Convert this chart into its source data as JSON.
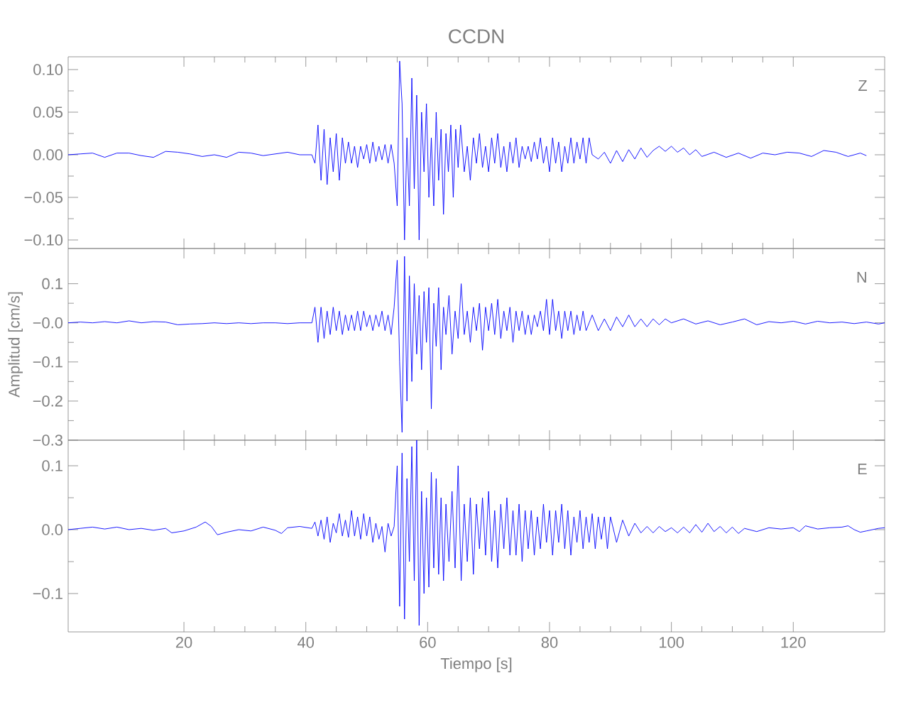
{
  "chart_data": [
    {
      "type": "line",
      "title": "CCDN",
      "annotations": [
        "Z"
      ],
      "tick_labels": "y",
      "xlim": [
        1,
        135
      ],
      "xticks": [
        20,
        40,
        60,
        80,
        100,
        120
      ],
      "ylim": [
        -0.11,
        0.115
      ],
      "yticks": [
        {
          "value": -0.1,
          "label": "−0.10"
        },
        {
          "value": -0.05,
          "label": "−0.05"
        },
        {
          "value": 0,
          "label": "0.00"
        },
        {
          "value": 0.05,
          "label": "0.05"
        },
        {
          "value": 0.1,
          "label": "0.10"
        }
      ],
      "series": [
        {
          "color": "#0000ff",
          "x": [
            1,
            3,
            5,
            7,
            9,
            11,
            13,
            15,
            17,
            19,
            21,
            23,
            25,
            27,
            29,
            31,
            33,
            35,
            37,
            39,
            41,
            41.5,
            42,
            42.5,
            43,
            43.5,
            44,
            44.5,
            45,
            45.5,
            46,
            46.5,
            47,
            47.5,
            48,
            48.5,
            49,
            49.5,
            50,
            50.5,
            51,
            51.5,
            52,
            52.5,
            53,
            53.5,
            54,
            54.5,
            55,
            55.4,
            55.8,
            56.2,
            56.6,
            57,
            57.4,
            57.8,
            58.2,
            58.6,
            59,
            59.4,
            59.8,
            60.2,
            60.6,
            61,
            61.4,
            61.8,
            62.2,
            62.6,
            63,
            63.4,
            63.8,
            64.2,
            64.6,
            65,
            65.4,
            66,
            66.5,
            67,
            67.5,
            68,
            68.5,
            69,
            69.5,
            70,
            70.5,
            71,
            71.5,
            72,
            72.5,
            73,
            73.5,
            74,
            74.5,
            75,
            75.5,
            76,
            76.5,
            77,
            77.5,
            78,
            78.5,
            79,
            79.5,
            80,
            80.5,
            81,
            81.5,
            82,
            82.5,
            83,
            83.5,
            84,
            84.5,
            85,
            85.5,
            86,
            86.5,
            87,
            88,
            89,
            90,
            91,
            92,
            93,
            94,
            95,
            96,
            97,
            98,
            99,
            100,
            101,
            102,
            103,
            104,
            105,
            107,
            109,
            111,
            113,
            115,
            117,
            119,
            121,
            123,
            125,
            127,
            129,
            131,
            132
          ],
          "values": [
            0,
            0.001,
            0.002,
            -0.003,
            0.002,
            0.002,
            -0.001,
            -0.003,
            0.004,
            0.003,
            0.001,
            -0.002,
            0,
            -0.003,
            0.003,
            0.002,
            -0.001,
            0.001,
            0.003,
            0,
            0,
            -0.01,
            0.035,
            -0.03,
            0.03,
            -0.035,
            0.02,
            -0.02,
            0.025,
            -0.03,
            0.02,
            -0.01,
            0.015,
            -0.01,
            0.01,
            -0.015,
            0.01,
            -0.005,
            0.012,
            -0.01,
            0.015,
            -0.008,
            0.01,
            -0.006,
            0.012,
            -0.01,
            0.012,
            -0.01,
            -0.06,
            0.11,
            0.06,
            -0.1,
            0.02,
            -0.06,
            0.09,
            -0.04,
            0.07,
            -0.1,
            0.05,
            -0.02,
            0.06,
            -0.05,
            0.02,
            -0.06,
            0.05,
            -0.03,
            0.03,
            -0.07,
            0.025,
            -0.02,
            0.035,
            -0.05,
            0.03,
            -0.015,
            0.035,
            -0.02,
            0.01,
            -0.03,
            0.02,
            -0.01,
            0.025,
            -0.015,
            0.01,
            -0.02,
            0.02,
            -0.01,
            0.025,
            -0.015,
            0.01,
            -0.02,
            0.015,
            -0.01,
            0.02,
            -0.015,
            0.01,
            -0.005,
            0.01,
            -0.008,
            0.015,
            -0.005,
            0.02,
            -0.01,
            0.01,
            -0.02,
            0.02,
            -0.01,
            0.015,
            -0.02,
            0.01,
            -0.01,
            0.02,
            -0.01,
            0.015,
            -0.005,
            0.02,
            -0.01,
            0.02,
            0,
            -0.005,
            0.003,
            -0.01,
            0.005,
            -0.008,
            0.006,
            -0.005,
            0.008,
            -0.003,
            0.005,
            0.01,
            0.004,
            0.01,
            0.003,
            0.008,
            0,
            0.006,
            -0.002,
            0.003,
            -0.003,
            0.002,
            -0.004,
            0.002,
            0,
            0.003,
            0.002,
            -0.002,
            0.005,
            0.003,
            -0.002,
            0.002,
            -0.001
          ]
        }
      ]
    },
    {
      "type": "line",
      "ylabel": "Amplitud [cm/s]",
      "annotations": [
        "N"
      ],
      "tick_labels": "y",
      "xlim": [
        1,
        135
      ],
      "xticks": [
        20,
        40,
        60,
        80,
        100,
        120
      ],
      "ylim": [
        -0.3,
        0.19
      ],
      "yticks": [
        {
          "value": -0.3,
          "label": "−0.3"
        },
        {
          "value": -0.2,
          "label": "−0.2"
        },
        {
          "value": -0.1,
          "label": "−0.1"
        },
        {
          "value": 0,
          "label": "−0.0"
        },
        0.1
      ],
      "series": [
        {
          "color": "#0000ff",
          "x": [
            1,
            3,
            5,
            7,
            9,
            11,
            13,
            15,
            17,
            19,
            21,
            23,
            25,
            27,
            29,
            31,
            33,
            35,
            37,
            39,
            41,
            41.5,
            42,
            42.5,
            43,
            43.5,
            44,
            44.5,
            45,
            45.5,
            46,
            46.5,
            47,
            47.5,
            48,
            48.5,
            49,
            49.5,
            50,
            50.5,
            51,
            51.5,
            52,
            52.5,
            53,
            53.5,
            54,
            54.5,
            55,
            55.4,
            55.8,
            56.2,
            56.6,
            57,
            57.4,
            57.8,
            58.2,
            58.6,
            59,
            59.4,
            59.8,
            60.2,
            60.6,
            61,
            61.4,
            61.8,
            62.2,
            62.6,
            63,
            63.5,
            64,
            64.5,
            65,
            65.5,
            66,
            66.5,
            67,
            67.5,
            68,
            68.5,
            69,
            69.5,
            70,
            70.5,
            71,
            71.5,
            72,
            72.5,
            73,
            73.5,
            74,
            74.5,
            75,
            75.5,
            76,
            76.5,
            77,
            77.5,
            78,
            78.5,
            79,
            79.5,
            80,
            80.5,
            81,
            81.5,
            82,
            82.5,
            83,
            83.5,
            84,
            84.5,
            85,
            85.5,
            86,
            87,
            88,
            89,
            90,
            91,
            92,
            93,
            94,
            95,
            96,
            97,
            98,
            99,
            100,
            102,
            104,
            106,
            108,
            110,
            112,
            114,
            116,
            118,
            120,
            122,
            124,
            126,
            128,
            130,
            132,
            134,
            135
          ],
          "values": [
            0,
            0.002,
            0,
            0.003,
            0,
            0.005,
            0,
            0.003,
            0.002,
            -0.005,
            -0.003,
            -0.002,
            0,
            -0.002,
            0,
            -0.002,
            0,
            0,
            -0.002,
            0,
            0,
            0.04,
            -0.05,
            0.04,
            -0.04,
            0.03,
            -0.03,
            0.04,
            -0.02,
            0.03,
            -0.03,
            0.02,
            -0.02,
            0.02,
            -0.02,
            0.03,
            -0.02,
            0.03,
            -0.01,
            0.02,
            -0.02,
            0.02,
            -0.01,
            0.03,
            -0.02,
            0.02,
            -0.03,
            0.04,
            0.16,
            -0.1,
            -0.28,
            0.17,
            -0.2,
            0.12,
            -0.15,
            0.1,
            -0.08,
            0.07,
            -0.12,
            0.08,
            -0.05,
            0.09,
            -0.22,
            0.05,
            -0.06,
            0.09,
            -0.12,
            0.04,
            -0.03,
            0.07,
            -0.08,
            0.03,
            -0.04,
            0.1,
            -0.03,
            0.03,
            -0.05,
            0.04,
            -0.02,
            0.05,
            -0.07,
            0.04,
            -0.02,
            0.05,
            -0.03,
            0.06,
            -0.04,
            0.03,
            -0.02,
            0.04,
            -0.05,
            0.03,
            -0.02,
            0.03,
            -0.03,
            0.02,
            -0.03,
            0.02,
            -0.01,
            0.03,
            -0.02,
            0.06,
            -0.03,
            0.06,
            -0.02,
            0.03,
            -0.04,
            0.03,
            -0.02,
            0.03,
            -0.03,
            0.02,
            -0.02,
            0.03,
            -0.02,
            0.02,
            -0.02,
            0.01,
            -0.02,
            0.015,
            -0.01,
            0.02,
            -0.01,
            0.01,
            -0.01,
            0.01,
            -0.005,
            0.01,
            0,
            0.01,
            -0.003,
            0.005,
            -0.005,
            0.002,
            0.01,
            -0.005,
            0.003,
            0,
            0.004,
            -0.003,
            0.004,
            0,
            0.002,
            -0.002,
            0.002,
            -0.003,
            0
          ]
        }
      ]
    },
    {
      "type": "line",
      "xlabel": "Tiempo [s]",
      "annotations": [
        "E"
      ],
      "xlim": [
        1,
        135
      ],
      "xticks": [
        20,
        40,
        60,
        80,
        100,
        120
      ],
      "ylim": [
        -0.16,
        0.14
      ],
      "yticks": [
        {
          "value": -0.1,
          "label": "−0.1"
        },
        {
          "value": 0,
          "label": "0.0"
        },
        0.1
      ],
      "series": [
        {
          "color": "#0000ff",
          "x": [
            1,
            3,
            5,
            7,
            9,
            11,
            13,
            15,
            17,
            18,
            20,
            22,
            23.5,
            24.5,
            25.5,
            27,
            29,
            31,
            33,
            35,
            36,
            37,
            39,
            41,
            41.5,
            42,
            42.5,
            43,
            43.5,
            44,
            44.5,
            45,
            45.5,
            46,
            46.5,
            47,
            47.5,
            48,
            48.5,
            49,
            49.5,
            50,
            50.5,
            51,
            51.5,
            52,
            52.5,
            53,
            53.5,
            54,
            54.5,
            55,
            55.4,
            55.8,
            56.2,
            56.6,
            57,
            57.4,
            57.8,
            58.2,
            58.6,
            59,
            59.4,
            59.8,
            60.2,
            60.6,
            61,
            61.4,
            61.8,
            62.2,
            62.6,
            63,
            63.5,
            64,
            64.5,
            65,
            65.5,
            66,
            66.5,
            67,
            67.5,
            68,
            68.5,
            69,
            69.5,
            70,
            70.5,
            71,
            71.5,
            72,
            72.5,
            73,
            73.5,
            74,
            74.5,
            75,
            75.5,
            76,
            76.5,
            77,
            77.5,
            78,
            78.5,
            79,
            79.5,
            80,
            80.5,
            81,
            81.5,
            82,
            82.5,
            83,
            83.5,
            84,
            84.5,
            85,
            85.5,
            86,
            86.5,
            87,
            87.5,
            88,
            88.5,
            89,
            89.5,
            90,
            91,
            92,
            93,
            94,
            95,
            96,
            97,
            98,
            99,
            100,
            101,
            102,
            103,
            104,
            105,
            106,
            107,
            108,
            109,
            110,
            111,
            112,
            114,
            116,
            118,
            120,
            121,
            122,
            124,
            126,
            128,
            129,
            130,
            131,
            132,
            134,
            135
          ],
          "values": [
            0,
            0.002,
            0.004,
            0.001,
            0.004,
            0,
            0.002,
            -0.001,
            0.002,
            -0.005,
            -0.002,
            0.004,
            0.012,
            0.005,
            -0.008,
            -0.004,
            0,
            -0.002,
            0.004,
            -0.001,
            -0.006,
            0.003,
            0.005,
            0.002,
            0.012,
            -0.01,
            0.015,
            -0.015,
            0.02,
            -0.02,
            0.01,
            -0.005,
            0.025,
            -0.01,
            0.015,
            -0.012,
            0.03,
            -0.01,
            0.02,
            -0.015,
            0.025,
            -0.01,
            0.02,
            -0.02,
            0.01,
            -0.015,
            0.005,
            -0.035,
            0.01,
            -0.01,
            0.005,
            0.1,
            -0.12,
            0.12,
            -0.14,
            0.08,
            -0.05,
            0.13,
            -0.08,
            0.14,
            -0.15,
            0.06,
            -0.1,
            0.05,
            -0.09,
            0.09,
            -0.06,
            0.08,
            -0.07,
            0.05,
            -0.08,
            0.04,
            -0.05,
            0.06,
            -0.06,
            0.1,
            -0.08,
            0.04,
            -0.05,
            0.05,
            -0.07,
            0.04,
            -0.03,
            0.05,
            -0.04,
            0.06,
            -0.05,
            0.03,
            -0.06,
            0.04,
            -0.03,
            0.05,
            -0.04,
            0.03,
            -0.04,
            0.04,
            -0.05,
            0.03,
            -0.03,
            0.03,
            -0.04,
            0.02,
            -0.03,
            0.04,
            -0.02,
            0.03,
            -0.04,
            0.03,
            -0.02,
            0.04,
            -0.03,
            0.03,
            -0.04,
            0.02,
            -0.02,
            0.03,
            -0.03,
            0.02,
            -0.02,
            0.025,
            -0.03,
            0.02,
            -0.015,
            0.02,
            -0.03,
            0.02,
            -0.02,
            0.015,
            -0.01,
            0.01,
            -0.005,
            0.005,
            -0.005,
            0.005,
            -0.003,
            0.003,
            -0.005,
            0.004,
            -0.005,
            0.008,
            -0.004,
            0.01,
            -0.003,
            0.005,
            -0.005,
            0.004,
            -0.006,
            0.002,
            -0.003,
            0.003,
            0.001,
            0.003,
            -0.003,
            0.006,
            0.001,
            0.003,
            0.004,
            0.006,
            0,
            -0.004,
            -0.002,
            0.002,
            0.003
          ]
        }
      ]
    }
  ]
}
